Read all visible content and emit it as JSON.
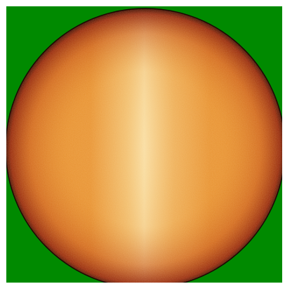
{
  "image": {
    "subject": "solar-disk",
    "colors": {
      "background": "#008a00",
      "limb_edge": "#1a0a02",
      "limb_dark": "#8e1d06",
      "mid": "#d9670f",
      "bright": "#f3b745",
      "core": "#fbe6a6"
    }
  }
}
